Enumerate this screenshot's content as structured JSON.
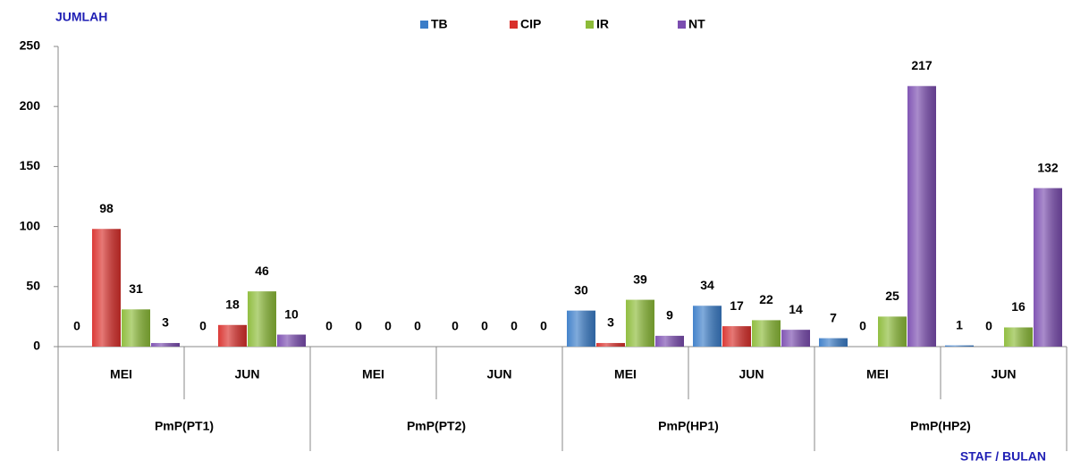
{
  "chart_data": {
    "type": "bar",
    "y_label": "JUMLAH",
    "x_label": "STAF / BULAN",
    "categories": [
      "MEI",
      "JUN",
      "MEI",
      "JUN",
      "MEI",
      "JUN",
      "MEI",
      "JUN"
    ],
    "groups": [
      "PmP(PT1)",
      "PmP(PT2)",
      "PmP(HP1)",
      "PmP(HP2)"
    ],
    "series": [
      {
        "name": "TB",
        "color": "#3b7dc8",
        "values": [
          0,
          0,
          0,
          0,
          30,
          34,
          7,
          1
        ]
      },
      {
        "name": "CIP",
        "color": "#d9302c",
        "values": [
          98,
          18,
          0,
          0,
          3,
          17,
          0,
          0
        ]
      },
      {
        "name": "IR",
        "color": "#8cbb38",
        "values": [
          31,
          46,
          0,
          0,
          39,
          22,
          25,
          16
        ]
      },
      {
        "name": "NT",
        "color": "#7b4db0",
        "values": [
          3,
          10,
          0,
          0,
          9,
          14,
          217,
          132
        ]
      }
    ],
    "ylim": [
      0,
      250
    ],
    "yticks": [
      0,
      50,
      100,
      150,
      200,
      250
    ],
    "legend": "top"
  }
}
